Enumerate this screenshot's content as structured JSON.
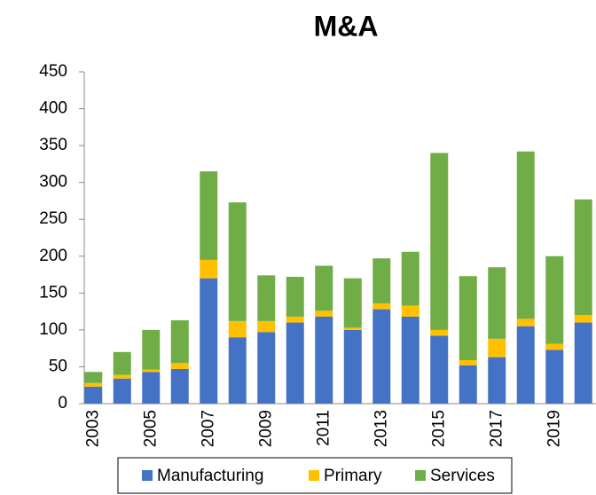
{
  "chart_data": {
    "type": "bar",
    "stacked": true,
    "title": "M&A",
    "categories": [
      "2003",
      null,
      "2005",
      null,
      "2007",
      null,
      "2009",
      null,
      "2011",
      null,
      "2013",
      null,
      "2015",
      null,
      "2017",
      null,
      "2019",
      null
    ],
    "series": [
      {
        "name": "Manufacturing",
        "color": "#4472c4",
        "values": [
          23,
          34,
          43,
          47,
          170,
          90,
          97,
          110,
          118,
          100,
          128,
          118,
          92,
          52,
          63,
          105,
          73,
          110
        ]
      },
      {
        "name": "Primary",
        "color": "#ffc000",
        "values": [
          5,
          5,
          3,
          8,
          25,
          22,
          15,
          8,
          8,
          3,
          8,
          15,
          8,
          7,
          25,
          10,
          8,
          10
        ]
      },
      {
        "name": "Services",
        "color": "#70ad47",
        "values": [
          15,
          31,
          54,
          58,
          120,
          161,
          62,
          54,
          61,
          67,
          61,
          73,
          240,
          114,
          97,
          227,
          119,
          157
        ]
      }
    ],
    "ylim": [
      0,
      450
    ],
    "yticks": [
      0,
      50,
      100,
      150,
      200,
      250,
      300,
      350,
      400,
      450
    ],
    "grid": false,
    "legend": "bottom"
  }
}
